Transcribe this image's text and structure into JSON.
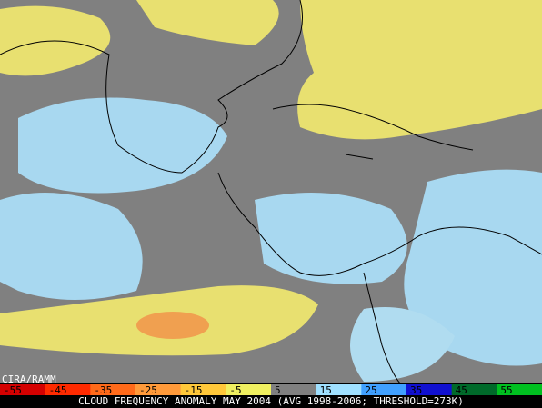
{
  "credit": "CIRA/RAMM",
  "caption": "CLOUD FREQUENCY ANOMALY MAY 2004 (AVG 1998-2006; THRESHOLD=273K)",
  "colorbar": {
    "ticks": [
      -55,
      -45,
      -35,
      -25,
      -15,
      -5,
      5,
      15,
      25,
      35,
      45,
      55
    ],
    "colors": [
      "#d40000",
      "#ff2a00",
      "#ff6a1a",
      "#ff9a3a",
      "#ffc83a",
      "#f0f060",
      "#808080",
      "#9fe0ff",
      "#40a0ff",
      "#1010d0",
      "#006a2a",
      "#00c020"
    ]
  }
}
